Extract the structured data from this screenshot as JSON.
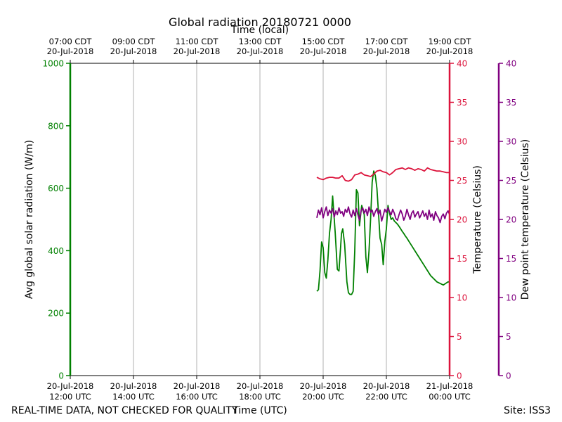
{
  "title": "Global radiation 20180721 0000",
  "top_axis_label": "Time (local)",
  "bottom_axis_label": "Time (UTC)",
  "footer_left": "REAL-TIME DATA, NOT CHECKED FOR QUALITY",
  "footer_right": "Site: ISS3",
  "colors": {
    "radiation": "#008000",
    "temperature": "#dc143c",
    "dewpoint": "#800080",
    "grid": "#b0b0b0"
  },
  "chart_data": {
    "type": "line",
    "x_ticks_utc": [
      [
        "20-Jul-2018",
        "12:00 UTC"
      ],
      [
        "20-Jul-2018",
        "14:00 UTC"
      ],
      [
        "20-Jul-2018",
        "16:00 UTC"
      ],
      [
        "20-Jul-2018",
        "18:00 UTC"
      ],
      [
        "20-Jul-2018",
        "20:00 UTC"
      ],
      [
        "20-Jul-2018",
        "22:00 UTC"
      ],
      [
        "21-Jul-2018",
        "00:00 UTC"
      ]
    ],
    "x_ticks_local": [
      [
        "07:00 CDT",
        "20-Jul-2018"
      ],
      [
        "09:00 CDT",
        "20-Jul-2018"
      ],
      [
        "11:00 CDT",
        "20-Jul-2018"
      ],
      [
        "13:00 CDT",
        "20-Jul-2018"
      ],
      [
        "15:00 CDT",
        "20-Jul-2018"
      ],
      [
        "17:00 CDT",
        "20-Jul-2018"
      ],
      [
        "19:00 CDT",
        "20-Jul-2018"
      ]
    ],
    "xlim_utc_hours": [
      12,
      24
    ],
    "grid": true,
    "axes": [
      {
        "id": "radiation",
        "label": "Avg global solar radiation (W/m)",
        "ylim": [
          0,
          1000
        ],
        "ticks": [
          0,
          200,
          400,
          600,
          800,
          1000
        ]
      },
      {
        "id": "temperature",
        "label": "Temperature (Celsius)",
        "ylim": [
          0,
          40
        ],
        "ticks": [
          0,
          5,
          10,
          15,
          20,
          25,
          30,
          35,
          40
        ]
      },
      {
        "id": "dewpoint",
        "label": "Dew point temperature (Celsius)",
        "ylim": [
          0,
          40
        ],
        "ticks": [
          0,
          5,
          10,
          15,
          20,
          25,
          30,
          35,
          40
        ]
      }
    ],
    "series": [
      {
        "axis": "radiation",
        "x": [
          19.8,
          19.85,
          19.9,
          19.95,
          20.0,
          20.05,
          20.1,
          20.15,
          20.2,
          20.25,
          20.3,
          20.38,
          20.45,
          20.5,
          20.55,
          20.58,
          20.62,
          20.68,
          20.75,
          20.8,
          20.85,
          20.9,
          20.95,
          21.0,
          21.05,
          21.1,
          21.15,
          21.22,
          21.3,
          21.35,
          21.4,
          21.45,
          21.5,
          21.55,
          21.6,
          21.65,
          21.7,
          21.75,
          21.8,
          21.85,
          21.9,
          21.95,
          22.0,
          22.05,
          22.1,
          22.15,
          22.2,
          22.25,
          22.3,
          22.35,
          22.4,
          22.45,
          22.5,
          22.55,
          22.6,
          22.65,
          22.7,
          22.8,
          23.0,
          23.2,
          23.4,
          23.6,
          23.8,
          23.95,
          24.0
        ],
        "y": [
          270,
          275,
          335,
          428,
          410,
          330,
          312,
          370,
          455,
          500,
          575,
          460,
          340,
          335,
          410,
          455,
          470,
          420,
          300,
          265,
          260,
          260,
          270,
          400,
          595,
          585,
          480,
          545,
          515,
          380,
          330,
          400,
          500,
          620,
          655,
          640,
          600,
          520,
          440,
          420,
          355,
          430,
          470,
          545,
          520,
          500,
          505,
          495,
          490,
          485,
          478,
          470,
          462,
          455,
          447,
          440,
          432,
          416,
          384,
          352,
          320,
          300,
          290,
          300,
          300
        ]
      },
      {
        "axis": "temperature",
        "x": [
          19.8,
          19.9,
          20.0,
          20.1,
          20.2,
          20.3,
          20.4,
          20.5,
          20.6,
          20.7,
          20.8,
          20.9,
          21.0,
          21.1,
          21.2,
          21.3,
          21.4,
          21.5,
          21.6,
          21.7,
          21.8,
          21.9,
          22.0,
          22.1,
          22.2,
          22.3,
          22.4,
          22.5,
          22.6,
          22.7,
          22.8,
          22.9,
          23.0,
          23.1,
          23.2,
          23.3,
          23.4,
          23.5,
          23.6,
          23.7,
          23.8,
          23.9,
          24.0
        ],
        "y": [
          25.4,
          25.2,
          25.1,
          25.3,
          25.4,
          25.4,
          25.3,
          25.3,
          25.6,
          25.0,
          24.9,
          25.1,
          25.7,
          25.8,
          26.0,
          25.7,
          25.6,
          25.5,
          25.8,
          26.2,
          26.3,
          26.1,
          26.0,
          25.7,
          26.0,
          26.4,
          26.5,
          26.6,
          26.4,
          26.6,
          26.5,
          26.3,
          26.5,
          26.4,
          26.2,
          26.6,
          26.4,
          26.3,
          26.2,
          26.2,
          26.1,
          26.0,
          26.0
        ]
      },
      {
        "axis": "dewpoint",
        "x": [
          19.8,
          19.85,
          19.9,
          19.95,
          20.0,
          20.05,
          20.1,
          20.15,
          20.2,
          20.25,
          20.3,
          20.35,
          20.4,
          20.45,
          20.5,
          20.55,
          20.6,
          20.65,
          20.7,
          20.75,
          20.8,
          20.85,
          20.9,
          20.95,
          21.0,
          21.05,
          21.1,
          21.15,
          21.2,
          21.25,
          21.3,
          21.35,
          21.4,
          21.45,
          21.5,
          21.55,
          21.6,
          21.65,
          21.7,
          21.75,
          21.8,
          21.85,
          21.9,
          21.95,
          22.0,
          22.05,
          22.1,
          22.15,
          22.2,
          22.25,
          22.3,
          22.35,
          22.4,
          22.45,
          22.5,
          22.55,
          22.6,
          22.65,
          22.7,
          22.75,
          22.8,
          22.85,
          22.9,
          22.95,
          23.0,
          23.05,
          23.1,
          23.15,
          23.2,
          23.25,
          23.3,
          23.35,
          23.4,
          23.45,
          23.5,
          23.55,
          23.6,
          23.65,
          23.7,
          23.75,
          23.8,
          23.85,
          23.9,
          23.95,
          24.0
        ],
        "y": [
          20.2,
          21.2,
          20.6,
          21.5,
          20.2,
          21.0,
          21.6,
          20.5,
          21.2,
          20.8,
          21.4,
          20.3,
          21.1,
          20.6,
          21.5,
          20.8,
          21.0,
          20.4,
          21.3,
          20.9,
          21.6,
          20.7,
          20.3,
          21.2,
          20.5,
          21.4,
          20.6,
          19.9,
          21.1,
          21.5,
          20.8,
          21.3,
          20.5,
          21.6,
          20.9,
          21.2,
          20.4,
          21.0,
          21.4,
          20.6,
          21.2,
          19.8,
          20.5,
          21.3,
          20.9,
          21.5,
          21.0,
          20.6,
          21.3,
          20.8,
          20.1,
          19.9,
          20.6,
          21.2,
          20.7,
          19.9,
          20.4,
          21.3,
          20.6,
          20.0,
          20.8,
          21.1,
          20.3,
          20.7,
          21.0,
          20.2,
          20.6,
          21.1,
          20.4,
          20.8,
          20.0,
          21.2,
          20.3,
          20.7,
          19.9,
          21.0,
          20.5,
          20.2,
          19.6,
          20.4,
          20.7,
          20.1,
          20.8,
          21.1,
          20.6
        ]
      }
    ]
  }
}
